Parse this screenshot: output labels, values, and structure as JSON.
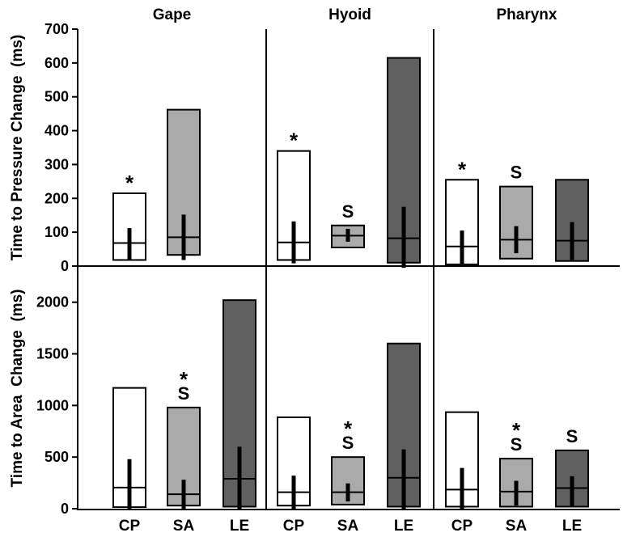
{
  "chart_data": {
    "type": "bar",
    "column_titles": [
      "Gape",
      "Hyoid",
      "Pharynx"
    ],
    "categories": [
      "CP",
      "SA",
      "LE"
    ],
    "colors": {
      "CP": "#ffffff",
      "SA": "#aaaaaa",
      "LE": "#606060"
    },
    "panels": [
      {
        "ylabel": "Time to Pressure Change  (ms)",
        "ylim": [
          0,
          700
        ],
        "yticks": [
          "0",
          "100",
          "200",
          "300",
          "400",
          "500",
          "600",
          "700"
        ],
        "columns": [
          {
            "title": "Gape",
            "bars": [
              {
                "category": "CP",
                "min": 18,
                "max": 215,
                "median": 68,
                "err_low": 18,
                "err_high": 112,
                "marker": "*"
              },
              {
                "category": "SA",
                "min": 33,
                "max": 462,
                "median": 85,
                "err_low": 18,
                "err_high": 152,
                "marker": ""
              }
            ]
          },
          {
            "title": "Hyoid",
            "bars": [
              {
                "category": "CP",
                "min": 18,
                "max": 340,
                "median": 70,
                "err_low": 8,
                "err_high": 132,
                "marker": "*"
              },
              {
                "category": "SA",
                "min": 55,
                "max": 120,
                "median": 90,
                "err_low": 72,
                "err_high": 110,
                "marker": "S"
              },
              {
                "category": "LE",
                "min": 10,
                "max": 615,
                "median": 82,
                "err_low": -5,
                "err_high": 175,
                "marker": ""
              }
            ]
          },
          {
            "title": "Pharynx",
            "bars": [
              {
                "category": "CP",
                "min": 5,
                "max": 255,
                "median": 58,
                "err_low": 5,
                "err_high": 105,
                "marker": "*"
              },
              {
                "category": "SA",
                "min": 22,
                "max": 235,
                "median": 78,
                "err_low": 38,
                "err_high": 118,
                "marker": "S"
              },
              {
                "category": "LE",
                "min": 15,
                "max": 255,
                "median": 75,
                "err_low": 18,
                "err_high": 130,
                "marker": ""
              }
            ]
          }
        ]
      },
      {
        "ylabel": "Time to Area  Change  (ms)",
        "ylim": [
          0,
          2350
        ],
        "yticks": [
          "0",
          "500",
          "1000",
          "1500",
          "2000"
        ],
        "columns": [
          {
            "title": "Gape",
            "bars": [
              {
                "category": "CP",
                "min": 15,
                "max": 1170,
                "median": 205,
                "err_low": 0,
                "err_high": 480,
                "marker": ""
              },
              {
                "category": "SA",
                "min": 30,
                "max": 980,
                "median": 140,
                "err_low": 0,
                "err_high": 280,
                "marker": "S*"
              },
              {
                "category": "LE",
                "min": 20,
                "max": 2020,
                "median": 290,
                "err_low": 0,
                "err_high": 600,
                "marker": ""
              }
            ]
          },
          {
            "title": "Hyoid",
            "bars": [
              {
                "category": "CP",
                "min": 30,
                "max": 885,
                "median": 160,
                "err_low": 0,
                "err_high": 320,
                "marker": ""
              },
              {
                "category": "SA",
                "min": 40,
                "max": 500,
                "median": 160,
                "err_low": 70,
                "err_high": 245,
                "marker": "S*"
              },
              {
                "category": "LE",
                "min": 20,
                "max": 1600,
                "median": 300,
                "err_low": 0,
                "err_high": 575,
                "marker": ""
              }
            ]
          },
          {
            "title": "Pharynx",
            "bars": [
              {
                "category": "CP",
                "min": 20,
                "max": 935,
                "median": 185,
                "err_low": 0,
                "err_high": 395,
                "marker": ""
              },
              {
                "category": "SA",
                "min": 20,
                "max": 485,
                "median": 165,
                "err_low": 30,
                "err_high": 270,
                "marker": "S*"
              },
              {
                "category": "LE",
                "min": 20,
                "max": 565,
                "median": 200,
                "err_low": 20,
                "err_high": 315,
                "marker": "S"
              }
            ]
          }
        ]
      }
    ]
  }
}
